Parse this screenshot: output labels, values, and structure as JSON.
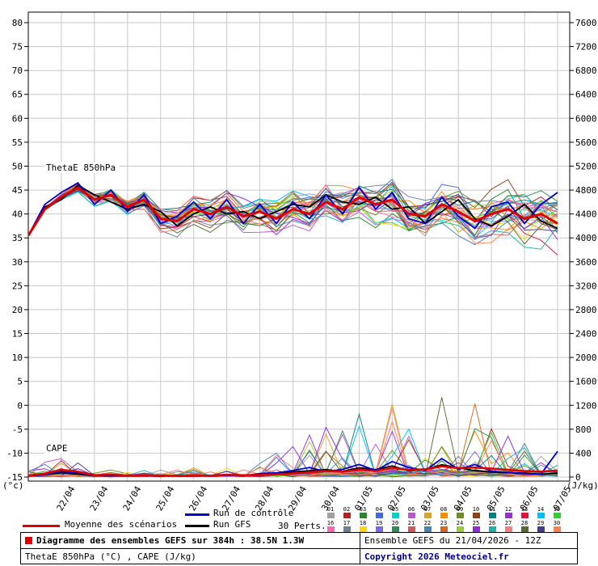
{
  "chart_data": {
    "type": "line",
    "title": "Diagramme des ensembles GEFS sur 384h : 38.5N 1.3W",
    "inner_labels": {
      "thetae": "ThetaE 850hPa",
      "cape": "CAPE"
    },
    "left_axis": {
      "unit": "(°c)",
      "ticks": [
        80,
        75,
        70,
        65,
        60,
        55,
        50,
        45,
        40,
        35,
        30,
        25,
        20,
        15,
        10,
        5,
        0,
        -5,
        -10,
        -15
      ]
    },
    "right_axis": {
      "unit": "(J/kg)",
      "ticks": [
        7600,
        7200,
        6800,
        6400,
        6000,
        5600,
        5200,
        4800,
        4400,
        4000,
        3600,
        3200,
        2800,
        2400,
        2000,
        1600,
        1200,
        800,
        400,
        0
      ]
    },
    "x_axis": {
      "date_labels": [
        "22/04",
        "23/04",
        "24/04",
        "25/04",
        "26/04",
        "27/04",
        "28/04",
        "29/04",
        "30/04",
        "01/05",
        "02/05",
        "03/05",
        "04/05",
        "05/05",
        "06/05",
        "07/05"
      ],
      "start_offset_hours": 24,
      "step_hours": 24,
      "total_hours": 384,
      "sample_step_hours": 12
    },
    "grid_color": "#c9c9c9",
    "series": [
      {
        "name": "Moyenne des scénarios",
        "color": "#dd0000",
        "width": 3,
        "thetae": [
          35.5,
          41,
          43.5,
          45.5,
          43,
          44,
          41.5,
          43,
          39,
          38.5,
          41,
          40,
          41.5,
          39.5,
          40.5,
          39,
          41,
          40,
          42.5,
          41,
          43.5,
          42,
          43,
          40,
          39.5,
          42,
          40.5,
          38.5,
          40,
          41,
          39,
          40,
          38
        ],
        "cape": [
          20,
          60,
          120,
          90,
          30,
          40,
          25,
          30,
          20,
          20,
          30,
          20,
          40,
          30,
          35,
          45,
          60,
          80,
          100,
          90,
          120,
          100,
          150,
          120,
          130,
          180,
          150,
          160,
          140,
          120,
          100,
          90,
          110
        ]
      },
      {
        "name": "Run de contrôle",
        "color": "#0000cc",
        "width": 1.8,
        "thetae": [
          35.5,
          42,
          44.5,
          46.5,
          42,
          45,
          40.5,
          44,
          38,
          39.5,
          42.5,
          39,
          43,
          38,
          42,
          38,
          42.5,
          39,
          44,
          40,
          45.5,
          41,
          44.5,
          39,
          38,
          43.5,
          39.5,
          37,
          41.5,
          42.5,
          38,
          42,
          44.5
        ],
        "cape": [
          20,
          50,
          90,
          70,
          25,
          30,
          20,
          25,
          30,
          20,
          25,
          20,
          30,
          20,
          60,
          70,
          110,
          160,
          90,
          130,
          210,
          110,
          260,
          160,
          110,
          310,
          130,
          210,
          100,
          80,
          60,
          50,
          430
        ]
      },
      {
        "name": "Run GFS",
        "color": "#000000",
        "width": 1.8,
        "thetae": [
          35.5,
          41.5,
          43,
          46,
          44,
          42.5,
          41,
          42,
          40.5,
          37.5,
          40,
          41.5,
          40,
          40.5,
          39,
          40.5,
          42,
          41.5,
          44,
          42.5,
          42,
          43.5,
          41,
          41.5,
          38,
          40.5,
          43,
          39,
          37.5,
          39.5,
          42,
          38.5,
          37
        ],
        "cape": [
          20,
          40,
          70,
          50,
          20,
          25,
          20,
          20,
          25,
          20,
          20,
          20,
          30,
          20,
          45,
          55,
          85,
          105,
          125,
          95,
          155,
          125,
          185,
          105,
          125,
          205,
          155,
          105,
          85,
          75,
          65,
          45,
          65
        ]
      }
    ],
    "members": {
      "count": 30,
      "labels": [
        "01",
        "02",
        "03",
        "04",
        "05",
        "06",
        "07",
        "08",
        "09",
        "10",
        "11",
        "12",
        "13",
        "14",
        "15",
        "16",
        "17",
        "18",
        "19",
        "20",
        "21",
        "22",
        "23",
        "24",
        "25",
        "26",
        "27",
        "28",
        "29",
        "30"
      ],
      "colors": [
        "#a0a0a4",
        "#b22222",
        "#228b22",
        "#4169e1",
        "#00ced1",
        "#ba55d3",
        "#daa520",
        "#ff8c00",
        "#6b8e23",
        "#8b4513",
        "#008080",
        "#9932cc",
        "#dc143c",
        "#00bfff",
        "#32cd32",
        "#ff69b4",
        "#708090",
        "#ffd700",
        "#7b68ee",
        "#2e8b57",
        "#cd5c5c",
        "#4682b4",
        "#d2691e",
        "#9acd32",
        "#8a2be2",
        "#20b2aa",
        "#f08080",
        "#556b2f",
        "#483d8b",
        "#ff7f50"
      ],
      "thetae_spread_range": [
        2.2,
        8
      ],
      "cape_max_envelope": [
        120,
        250,
        420,
        300,
        160,
        160,
        120,
        160,
        260,
        160,
        160,
        120,
        160,
        120,
        320,
        420,
        640,
        760,
        960,
        840,
        1240,
        960,
        1360,
        1060,
        1440,
        1620,
        1280,
        1520,
        1140,
        960,
        840,
        640,
        760
      ]
    }
  },
  "legend": {
    "mean_label": "Moyenne des scénarios",
    "control_label": "Run de contrôle",
    "gfs_label": "Run GFS",
    "perts_label": "30 Perts."
  },
  "footer": {
    "left_title": "Diagramme des ensembles GEFS sur 384h : 38.5N 1.3W",
    "left_subtitle": "ThetaE 850hPa (°C) , CAPE (J/kg)",
    "right_top": "Ensemble GEFS du 21/04/2026 - 12Z",
    "right_bottom": "Copyright 2026 Meteociel.fr"
  }
}
